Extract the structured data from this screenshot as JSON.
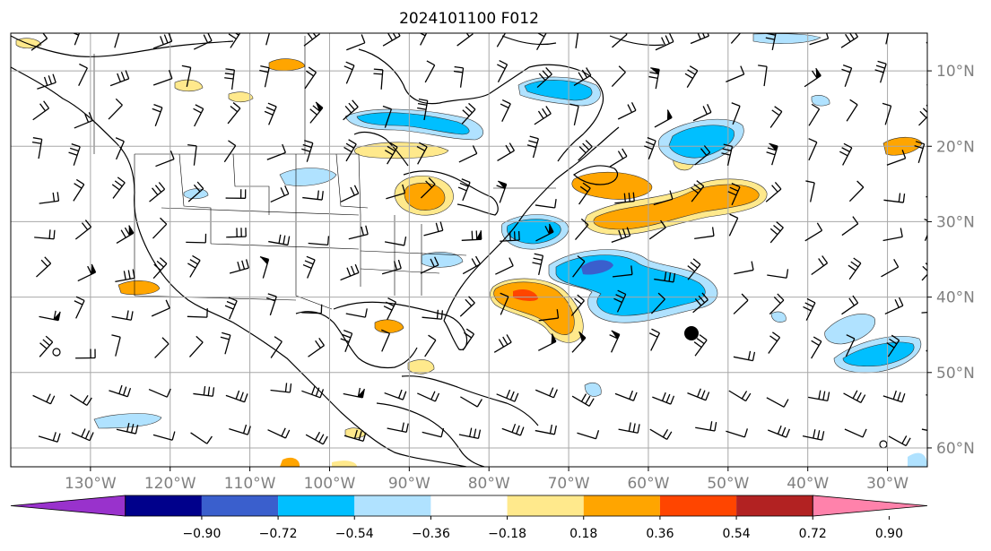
{
  "title": "2024101100 F012",
  "lon_labels": [
    "130°W",
    "120°W",
    "110°W",
    "100°W",
    "90°W",
    "80°W",
    "70°W",
    "60°W",
    "50°W",
    "40°W",
    "30°W"
  ],
  "lat_labels": [
    "60°N",
    "50°N",
    "40°N",
    "30°N",
    "20°N",
    "10°N"
  ],
  "colorbar": {
    "ticks": [
      "−0.90",
      "−0.72",
      "−0.54",
      "−0.36",
      "−0.18",
      "0.18",
      "0.36",
      "0.54",
      "0.72",
      "0.90"
    ],
    "colors": [
      "#9932cc",
      "#00008b",
      "#3a5fcd",
      "#00bfff",
      "#b0e2ff",
      "#ffffff",
      "#ffe98c",
      "#ffa500",
      "#ff4500",
      "#b22222",
      "#ff82ab"
    ]
  },
  "map": {
    "projection": "plate-carree",
    "extent": {
      "lon": [
        -140,
        -25
      ],
      "lat": [
        7.5,
        65
      ]
    },
    "grid_lons": [
      -130,
      -120,
      -110,
      -100,
      -90,
      -80,
      -70,
      -60,
      -50,
      -40,
      -30
    ],
    "grid_lats": [
      10,
      20,
      30,
      40,
      50,
      60
    ]
  }
}
